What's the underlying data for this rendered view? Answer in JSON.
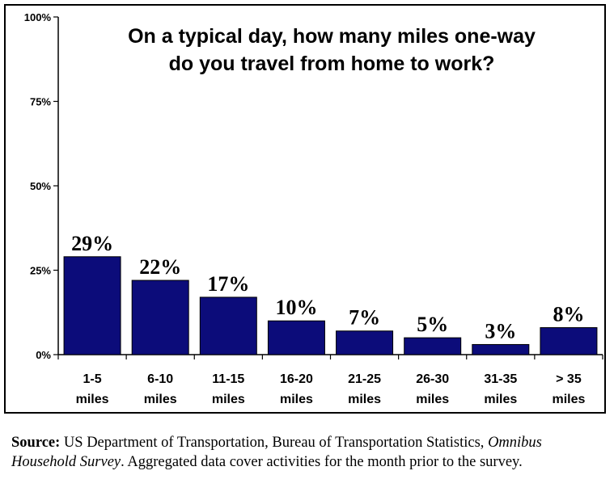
{
  "chart_data": {
    "type": "bar",
    "title_lines": [
      "On a typical day, how many miles one-way",
      "do you travel from home to work?"
    ],
    "categories": [
      [
        "1-5",
        "miles"
      ],
      [
        "6-10",
        "miles"
      ],
      [
        "11-15",
        "miles"
      ],
      [
        "16-20",
        "miles"
      ],
      [
        "21-25",
        "miles"
      ],
      [
        "26-30",
        "miles"
      ],
      [
        "31-35",
        "miles"
      ],
      [
        "> 35",
        "miles"
      ]
    ],
    "values": [
      29,
      22,
      17,
      10,
      7,
      5,
      3,
      8
    ],
    "value_labels": [
      "29%",
      "22%",
      "17%",
      "10%",
      "7%",
      "5%",
      "3%",
      "8%"
    ],
    "ylim": [
      0,
      100
    ],
    "y_ticks": [
      0,
      25,
      50,
      75,
      100
    ],
    "y_tick_labels": [
      "0%",
      "25%",
      "50%",
      "75%",
      "100%"
    ],
    "bar_color": "#0c0c7a",
    "grid": false
  },
  "source": {
    "label": "Source:",
    "text1": " US Department of Transportation, Bureau of Transportation Statistics, ",
    "italic": "Omnibus Household Survey",
    "text2": ".  Aggregated data cover activities for the month prior to the survey."
  }
}
